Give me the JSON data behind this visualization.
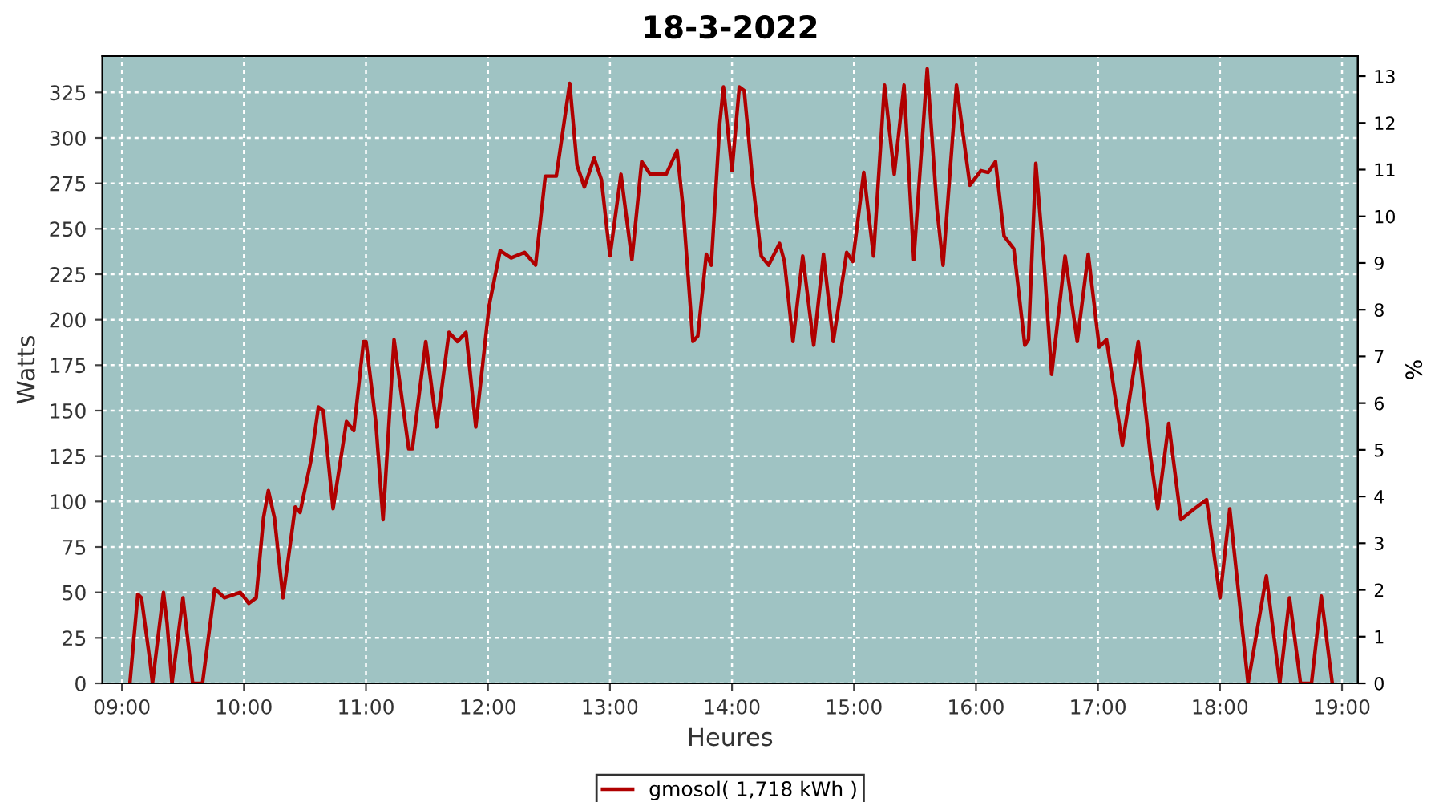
{
  "chart_data": {
    "type": "line",
    "title": "18-3-2022",
    "xlabel": "Heures",
    "ylabel": "Watts",
    "y2label": "%",
    "xlim": [
      8.84,
      19.13
    ],
    "xticks": [
      {
        "value": 9,
        "label": "09:00"
      },
      {
        "value": 10,
        "label": "10:00"
      },
      {
        "value": 11,
        "label": "11:00"
      },
      {
        "value": 12,
        "label": "12:00"
      },
      {
        "value": 13,
        "label": "13:00"
      },
      {
        "value": 14,
        "label": "14:00"
      },
      {
        "value": 15,
        "label": "15:00"
      },
      {
        "value": 16,
        "label": "16:00"
      },
      {
        "value": 17,
        "label": "17:00"
      },
      {
        "value": 18,
        "label": "18:00"
      },
      {
        "value": 19,
        "label": "19:00"
      }
    ],
    "ylim": [
      0,
      345
    ],
    "yticks": [
      0,
      25,
      50,
      75,
      100,
      125,
      150,
      175,
      200,
      225,
      250,
      275,
      300,
      325
    ],
    "y2lim": [
      0,
      13.43
    ],
    "y2ticks": [
      0,
      1,
      2,
      3,
      4,
      5,
      6,
      7,
      8,
      9,
      10,
      11,
      12,
      13
    ],
    "grid": true,
    "legend": "bottom",
    "marker": "none",
    "line_style": "solid",
    "series": [
      {
        "name": "gmosol( 1,718 kWh )",
        "color": "#b00000",
        "x": [
          9.065,
          9.13,
          9.16,
          9.23,
          9.25,
          9.34,
          9.37,
          9.41,
          9.5,
          9.58,
          9.66,
          9.76,
          9.84,
          9.97,
          10.04,
          10.1,
          10.16,
          10.2,
          10.25,
          10.32,
          10.42,
          10.46,
          10.55,
          10.61,
          10.65,
          10.73,
          10.84,
          10.9,
          10.98,
          11.0,
          11.08,
          11.14,
          11.23,
          11.35,
          11.38,
          11.49,
          11.58,
          11.68,
          11.75,
          11.82,
          11.9,
          12.01,
          12.1,
          12.19,
          12.3,
          12.39,
          12.47,
          12.56,
          12.67,
          12.73,
          12.79,
          12.87,
          12.93,
          13.0,
          13.09,
          13.18,
          13.26,
          13.33,
          13.46,
          13.55,
          13.6,
          13.68,
          13.72,
          13.79,
          13.83,
          13.9,
          13.93,
          14.0,
          14.06,
          14.1,
          14.17,
          14.24,
          14.3,
          14.39,
          14.43,
          14.5,
          14.58,
          14.67,
          14.75,
          14.83,
          14.94,
          14.99,
          15.08,
          15.16,
          15.25,
          15.33,
          15.41,
          15.49,
          15.6,
          15.68,
          15.73,
          15.84,
          15.95,
          16.04,
          16.1,
          16.16,
          16.23,
          16.31,
          16.4,
          16.43,
          16.49,
          16.56,
          16.62,
          16.73,
          16.83,
          16.92,
          17.01,
          17.07,
          17.2,
          17.33,
          17.43,
          17.49,
          17.58,
          17.68,
          17.77,
          17.89,
          18.0,
          18.08,
          18.23,
          18.38,
          18.49,
          18.57,
          18.66,
          18.75,
          18.83,
          18.92
        ],
        "values": [
          0,
          49,
          47,
          12,
          0,
          50,
          33,
          0,
          47,
          0,
          0,
          52,
          47,
          50,
          44,
          47,
          91,
          106,
          91,
          47,
          97,
          94,
          123,
          152,
          150,
          96,
          144,
          139,
          188,
          188,
          144,
          90,
          189,
          129,
          129,
          188,
          141,
          193,
          188,
          193,
          141,
          208,
          238,
          234,
          237,
          230,
          279,
          279,
          330,
          285,
          273,
          289,
          277,
          235,
          280,
          233,
          287,
          280,
          280,
          293,
          261,
          188,
          191,
          236,
          230,
          308,
          328,
          282,
          328,
          326,
          276,
          235,
          230,
          242,
          232,
          188,
          235,
          186,
          236,
          188,
          237,
          232,
          281,
          235,
          329,
          280,
          329,
          233,
          338,
          261,
          230,
          329,
          274,
          282,
          281,
          287,
          246,
          239,
          186,
          189,
          286,
          229,
          170,
          235,
          188,
          236,
          185,
          189,
          131,
          188,
          125,
          96,
          143,
          90,
          95,
          101,
          47,
          96,
          0,
          59,
          0,
          47,
          0,
          0,
          48,
          0
        ]
      }
    ]
  }
}
